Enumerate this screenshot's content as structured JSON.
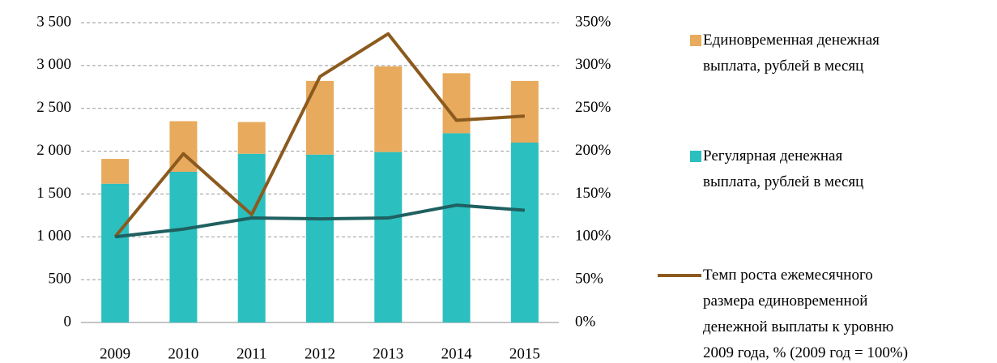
{
  "chart_data": {
    "type": "bar",
    "categories": [
      "2009",
      "2010",
      "2011",
      "2012",
      "2013",
      "2014",
      "2015"
    ],
    "series": [
      {
        "name": "Единовременная денежная\nвыплата, рублей в месяц",
        "type": "bar",
        "color": "#E8AA5C",
        "values": [
          290,
          590,
          370,
          860,
          1000,
          700,
          720
        ]
      },
      {
        "name": "Регулярная денежная\nвыплата, рублей в месяц",
        "type": "bar",
        "color": "#2BBFBF",
        "values": [
          1620,
          1760,
          1970,
          1960,
          1990,
          2210,
          2100
        ]
      },
      {
        "name": "Темп роста ежемесячного\nразмера единовременной\nденежной выплаты к уровню\n2009 года, % (2009 год = 100%)",
        "type": "line",
        "axis": "y2",
        "color": "#8B5A1E",
        "values": [
          100,
          197,
          126,
          287,
          337,
          236,
          241
        ]
      },
      {
        "type": "line",
        "axis": "y2",
        "color": "#1F6060",
        "values": [
          100,
          109,
          122,
          121,
          122,
          137,
          131
        ]
      }
    ],
    "ylim": [
      0,
      3500
    ],
    "yticks": [
      0,
      500,
      {
        "value": 1000,
        "label": "1 000"
      },
      {
        "value": 1500,
        "label": "1 500"
      },
      {
        "value": 2000,
        "label": "2 000"
      },
      {
        "value": 2500,
        "label": "2 500"
      },
      {
        "value": 3000,
        "label": "3 000"
      },
      {
        "value": 3500,
        "label": "3 500"
      }
    ],
    "y2lim": [
      0,
      350
    ],
    "y2ticks": [
      {
        "value": 0,
        "label": "0%"
      },
      {
        "value": 50,
        "label": "50%"
      },
      {
        "value": 100,
        "label": "100%"
      },
      {
        "value": 150,
        "label": "150%"
      },
      {
        "value": 200,
        "label": "200%"
      },
      {
        "value": 250,
        "label": "250%"
      },
      {
        "value": 300,
        "label": "300%"
      },
      {
        "value": 350,
        "label": "350%"
      }
    ],
    "grid": true,
    "legend": "right"
  }
}
